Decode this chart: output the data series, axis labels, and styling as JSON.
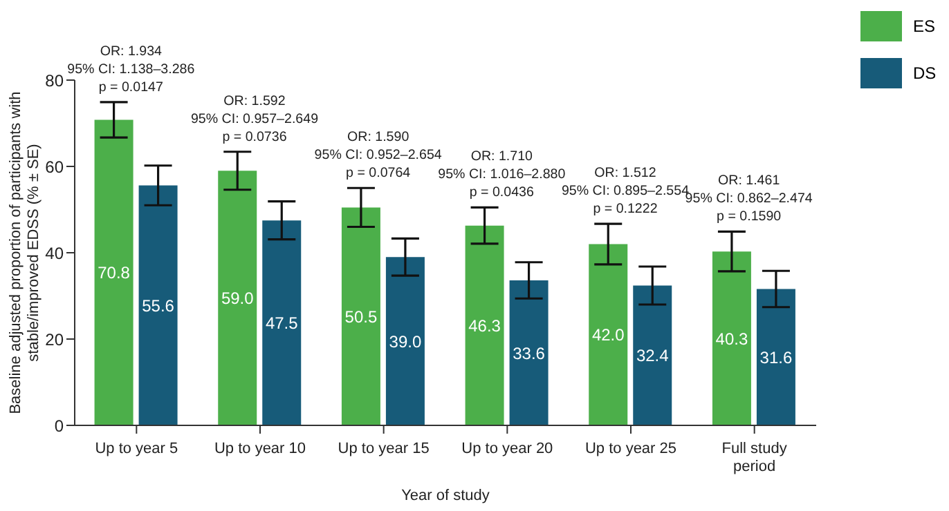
{
  "chart_data": {
    "type": "bar",
    "xlabel": "Year of study",
    "ylabel": "Baseline adjusted proportion of participants with stable/improved EDSS (% ± SE)",
    "categories": [
      "Up to year 5",
      "Up to year 10",
      "Up to year 15",
      "Up to year 20",
      "Up to year 25",
      "Full study period"
    ],
    "series": [
      {
        "name": "ES",
        "color": "#4caf4a",
        "values": [
          70.8,
          59.0,
          50.5,
          46.3,
          42.0,
          40.3
        ],
        "errors": [
          4.1,
          4.4,
          4.5,
          4.2,
          4.7,
          4.6
        ],
        "value_labels": [
          "70.8",
          "59.0",
          "50.5",
          "46.3",
          "42.0",
          "40.3"
        ]
      },
      {
        "name": "DS",
        "color": "#175b79",
        "values": [
          55.6,
          47.5,
          39.0,
          33.6,
          32.4,
          31.6
        ],
        "errors": [
          4.6,
          4.4,
          4.3,
          4.2,
          4.4,
          4.2
        ],
        "value_labels": [
          "55.6",
          "47.5",
          "39.0",
          "33.6",
          "32.4",
          "31.6"
        ]
      }
    ],
    "ylim": [
      0,
      80
    ],
    "yticks": [
      0,
      20,
      40,
      60,
      80
    ],
    "legend": "top right",
    "grid": false,
    "annotations": [
      "OR: 1.934\n95% CI: 1.138–3.286\np = 0.0147",
      "OR: 1.592\n95% CI: 0.957–2.649\np = 0.0736",
      "OR: 1.590\n95% CI: 0.952–2.654\np = 0.0764",
      "OR: 1.710\n95% CI: 1.016–2.880\np = 0.0436",
      "OR: 1.512\n95% CI: 0.895–2.554\np = 0.1222",
      "OR: 1.461\n95% CI: 0.862–2.474\np = 0.1590"
    ]
  }
}
